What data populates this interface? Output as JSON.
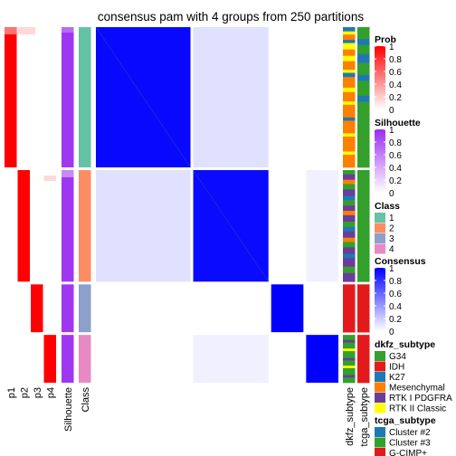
{
  "chart_data": {
    "type": "heatmap",
    "title": "consensus pam with 4 groups from 250 partitions",
    "row_annotation_labels": [
      "p1",
      "p2",
      "p3",
      "p4",
      "Silhouette",
      "Class"
    ],
    "side_annotation_labels": [
      "dkfz_subtype",
      "tcga_subtype"
    ],
    "groups": [
      {
        "class": "1",
        "fraction": 0.44,
        "silhouette": 0.95,
        "within_consensus": 0.97
      },
      {
        "class": "2",
        "fraction": 0.35,
        "silhouette": 0.95,
        "within_consensus": 0.96
      },
      {
        "class": "3",
        "fraction": 0.15,
        "silhouette": 0.95,
        "within_consensus": 1.0
      },
      {
        "class": "4",
        "fraction": 0.15,
        "silhouette": 0.95,
        "within_consensus": 1.0
      }
    ],
    "off_diagonal_consensus": {
      "1-2": 0.12,
      "2-4": 0.06
    },
    "legends": [
      {
        "title": "Prob",
        "kind": "continuous",
        "ticks": [
          "1",
          "0.8",
          "0.6",
          "0.4",
          "0.2",
          "0"
        ],
        "colors": [
          "#ff0000",
          "#ffffff"
        ]
      },
      {
        "title": "Silhouette",
        "kind": "continuous",
        "ticks": [
          "1",
          "0.8",
          "0.6",
          "0.4",
          "0.2",
          "0"
        ],
        "colors": [
          "#9a2cf0",
          "#ffffff"
        ]
      },
      {
        "title": "Class",
        "kind": "discrete",
        "items": [
          {
            "label": "1",
            "color": "#66c2a5"
          },
          {
            "label": "2",
            "color": "#fc8d62"
          },
          {
            "label": "3",
            "color": "#8da0cb"
          },
          {
            "label": "4",
            "color": "#e78ac3"
          }
        ]
      },
      {
        "title": "Consensus",
        "kind": "continuous",
        "ticks": [
          "1",
          "0.8",
          "0.6",
          "0.4",
          "0.2",
          "0"
        ],
        "colors": [
          "#0000ff",
          "#ffffff"
        ]
      },
      {
        "title": "dkfz_subtype",
        "kind": "discrete",
        "items": [
          {
            "label": "G34",
            "color": "#33a02c"
          },
          {
            "label": "IDH",
            "color": "#e31a1c"
          },
          {
            "label": "K27",
            "color": "#1f78b4"
          },
          {
            "label": "Mesenchymal",
            "color": "#ff7f00"
          },
          {
            "label": "RTK I PDGFRA",
            "color": "#6a3d9a"
          },
          {
            "label": "RTK II Classic",
            "color": "#ffff00"
          }
        ]
      },
      {
        "title": "tcga_subtype",
        "kind": "discrete",
        "items": [
          {
            "label": "Cluster #2",
            "color": "#1f78b4"
          },
          {
            "label": "Cluster #3",
            "color": "#33a02c"
          },
          {
            "label": "G-CIMP+",
            "color": "#e31a1c"
          }
        ]
      }
    ]
  }
}
